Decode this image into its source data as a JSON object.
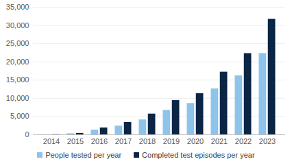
{
  "chart_data": {
    "type": "bar",
    "categories": [
      "2014",
      "2015",
      "2016",
      "2017",
      "2018",
      "2019",
      "2020",
      "2021",
      "2022",
      "2023"
    ],
    "series": [
      {
        "name": "People tested per year",
        "color": "#8cc4ec",
        "values": [
          30,
          300,
          1300,
          2400,
          4100,
          6700,
          8600,
          12600,
          16200,
          22300
        ]
      },
      {
        "name": "Completed test episodes per year",
        "color": "#0b2545",
        "values": [
          50,
          400,
          1900,
          3400,
          5700,
          9400,
          11300,
          17200,
          22300,
          31700
        ]
      }
    ],
    "ylim": [
      0,
      35000
    ],
    "yticks": [
      0,
      {
        "value": 5000,
        "label": "5,000"
      },
      {
        "value": 10000,
        "label": "10,000"
      },
      {
        "value": 15000,
        "label": "15,000"
      },
      {
        "value": 20000,
        "label": "20,000"
      },
      {
        "value": 25000,
        "label": "25,000"
      },
      {
        "value": 30000,
        "label": "30,000"
      },
      {
        "value": 35000,
        "label": "35,000"
      }
    ],
    "grid": true,
    "legend": "bottom"
  }
}
